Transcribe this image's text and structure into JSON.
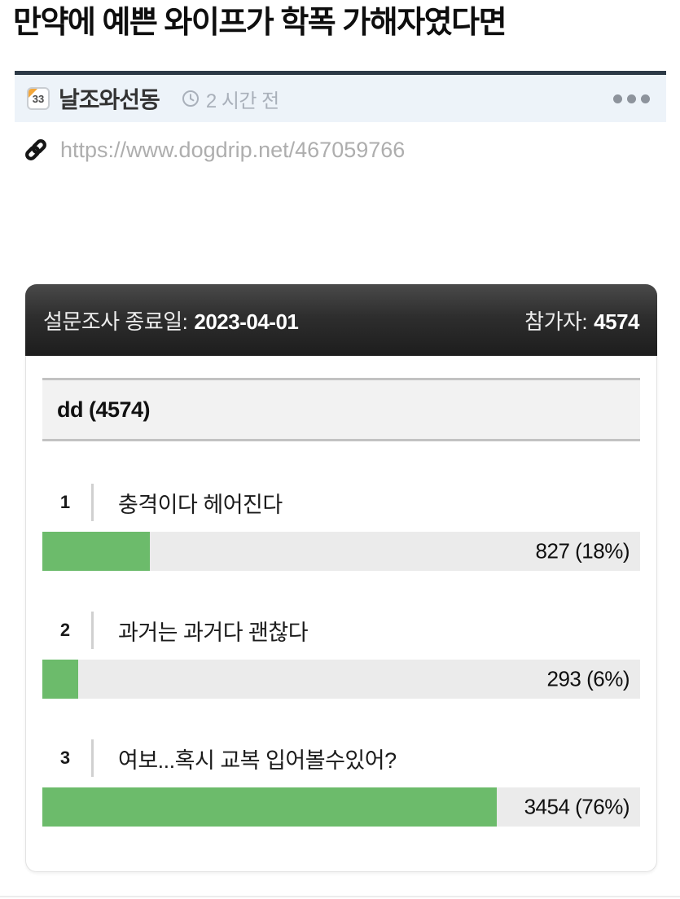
{
  "post": {
    "title": "만약에 예쁜 와이프가 학폭 가해자였다면",
    "board": {
      "badge": "33",
      "name": "날조와선동"
    },
    "time": "2 시간 전",
    "url": "https://www.dogdrip.net/467059766",
    "icons": {
      "badge_fold": "orange-corner-fold",
      "clock": "clock-icon",
      "link": "chain-link-icon",
      "more": "ellipsis-menu-icon"
    }
  },
  "poll": {
    "end_date_label": "설문조사 종료일:",
    "end_date": "2023-04-01",
    "participants_label": "참가자:",
    "participants": "4574",
    "question": "dd (4574)",
    "options": [
      {
        "rank": "1",
        "label": "충격이다 헤어진다",
        "votes": 827,
        "percent": 18,
        "value_text": "827 (18%)"
      },
      {
        "rank": "2",
        "label": "과거는 과거다 괜찮다",
        "votes": 293,
        "percent": 6,
        "value_text": "293 (6%)"
      },
      {
        "rank": "3",
        "label": "여보...혹시 교복 입어볼수있어?",
        "votes": 3454,
        "percent": 76,
        "value_text": "3454 (76%)"
      }
    ]
  },
  "colors": {
    "bar_fill": "#6cbb6b",
    "bar_track": "#ebebeb",
    "header_dark": "#2a2a2a",
    "meta_bar_bg": "#edf3f9",
    "divider_dark": "#2d3a47",
    "badge_fold": "#f3a73b",
    "muted_text": "#a9b0ba"
  }
}
